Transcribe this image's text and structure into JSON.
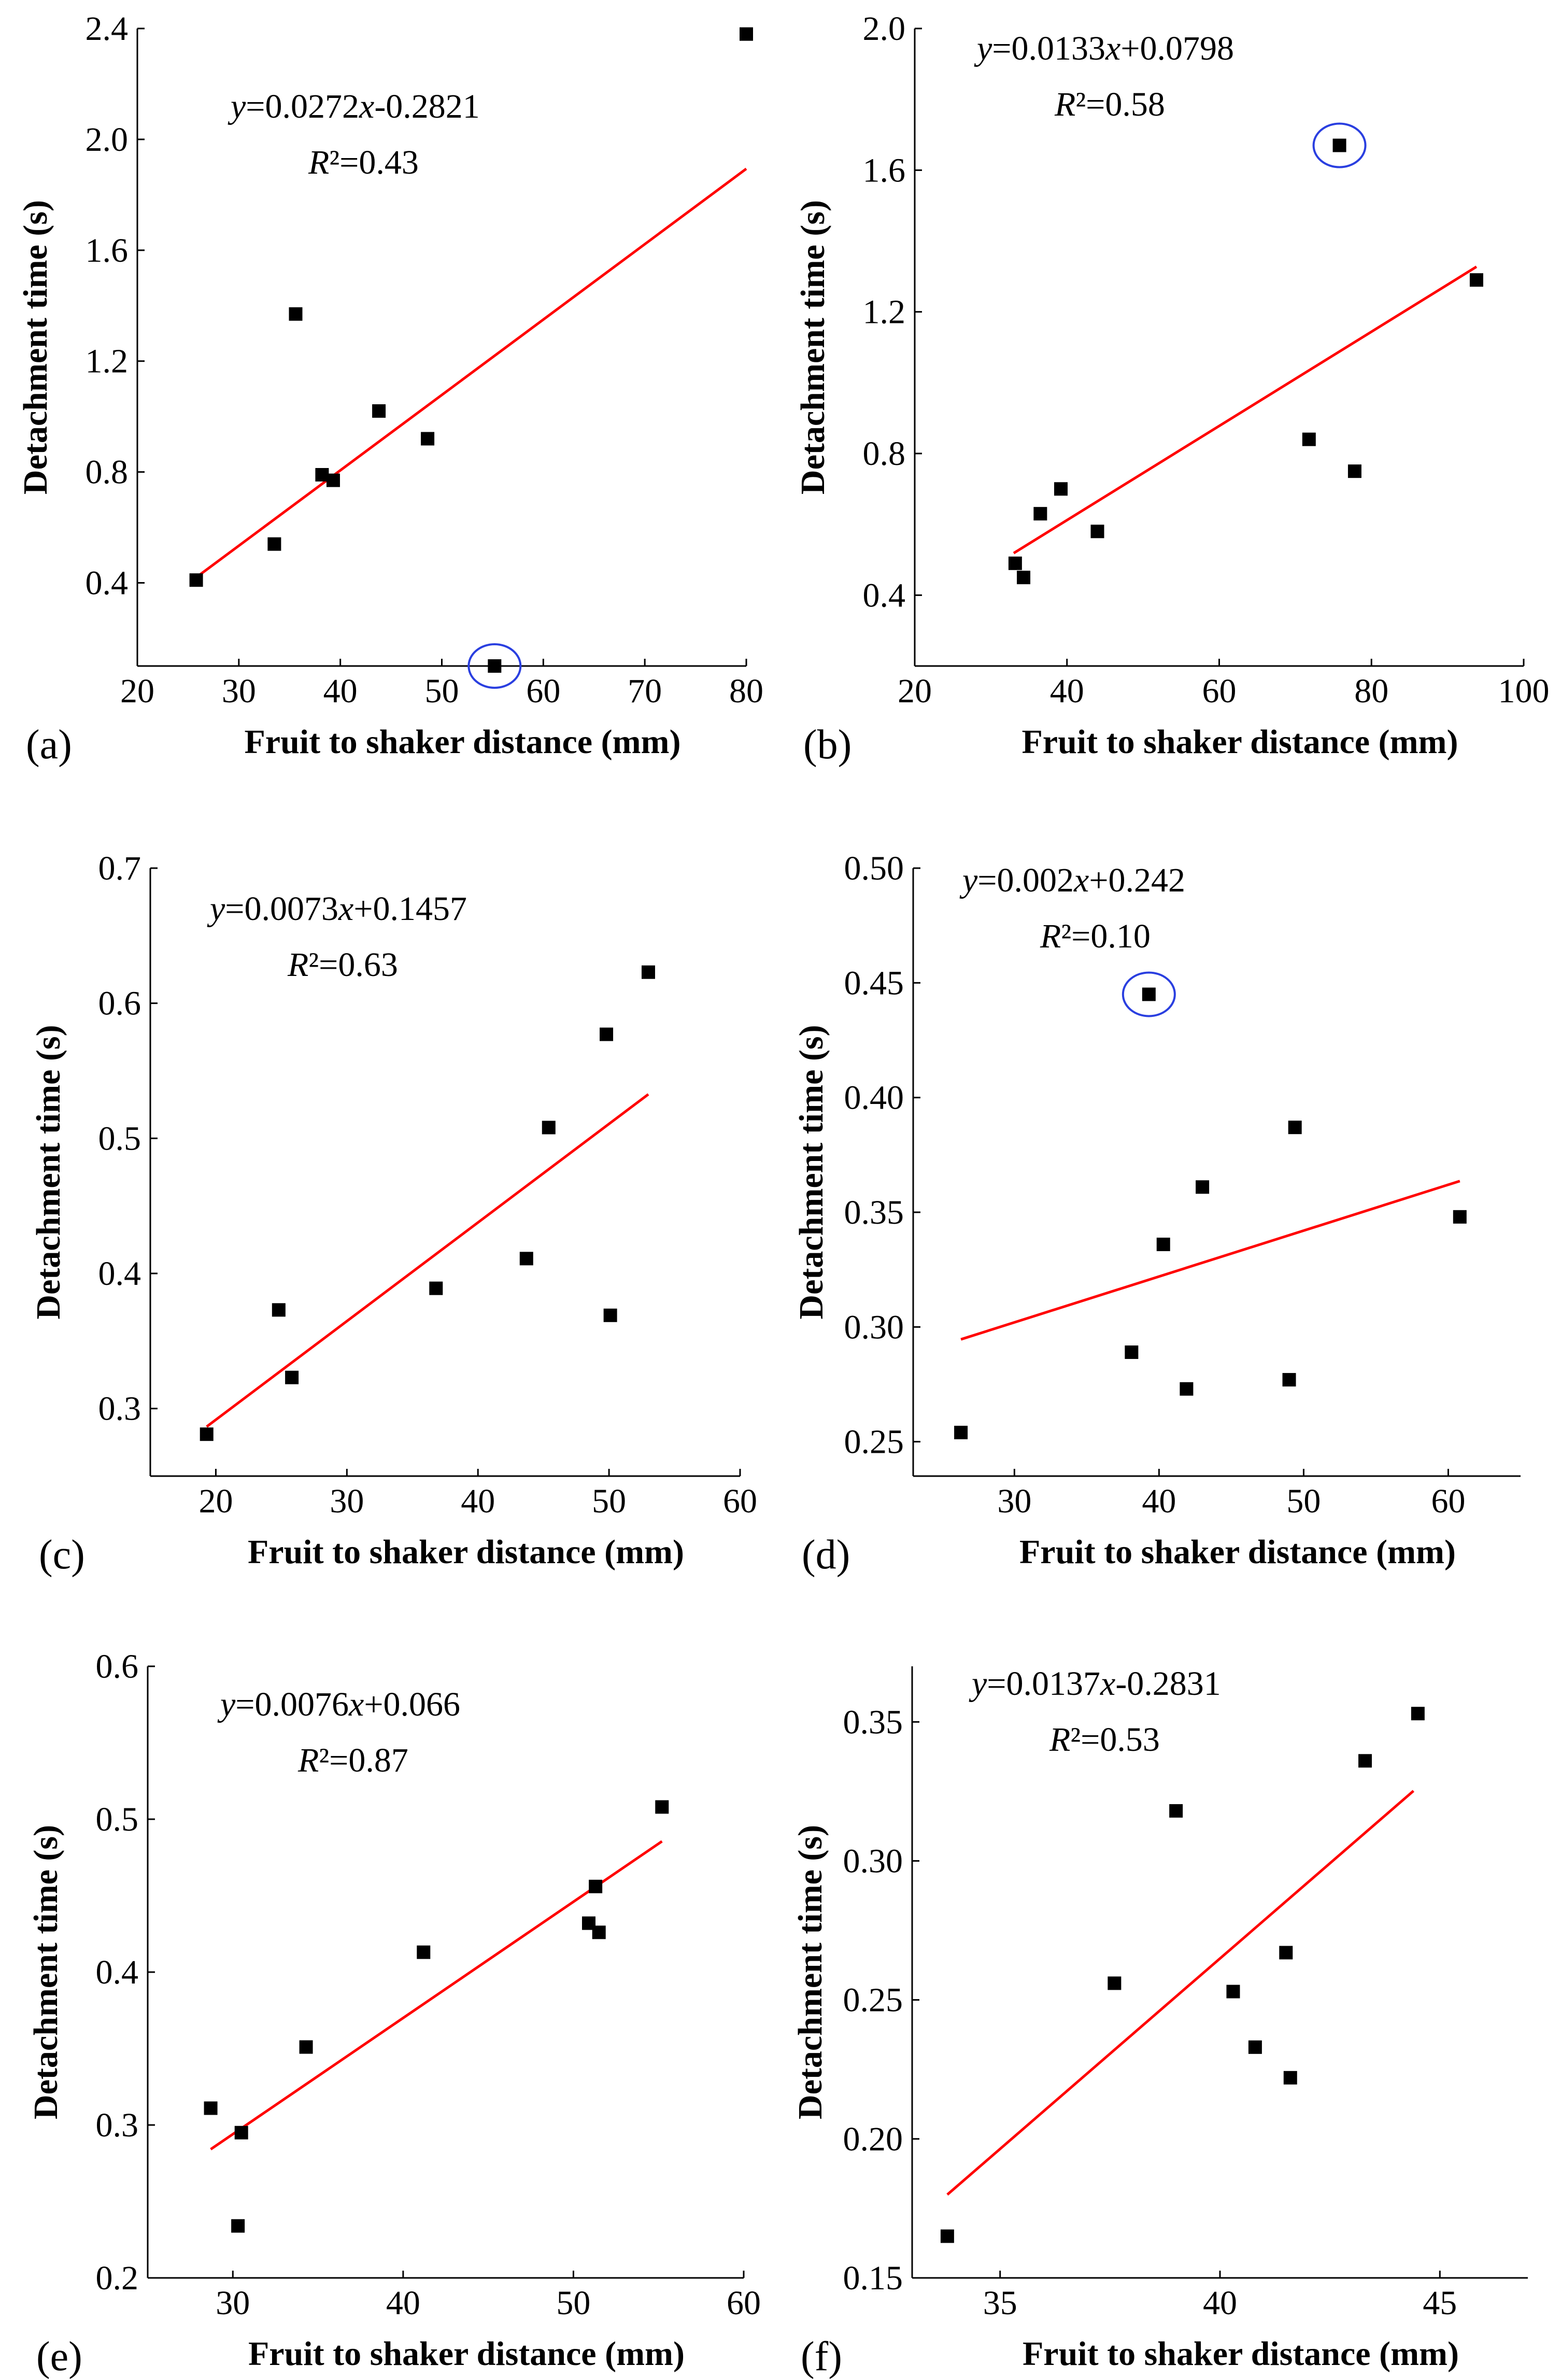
{
  "chart_data": [
    {
      "type": "scatter",
      "panel": "(a)",
      "xlabel": "Fruit to shaker distance (mm)",
      "ylabel": "Detachment time (s)",
      "xlim": [
        20,
        80
      ],
      "ylim": [
        0.1,
        2.4
      ],
      "xticks": [
        20,
        30,
        40,
        50,
        60,
        70,
        80
      ],
      "yticks": [
        0.4,
        0.8,
        1.2,
        1.6,
        2.0,
        2.4
      ],
      "ytick_decimals": 1,
      "points": [
        [
          25.8,
          0.41
        ],
        [
          33.5,
          0.54
        ],
        [
          35.6,
          1.37
        ],
        [
          38.2,
          0.79
        ],
        [
          39.3,
          0.77
        ],
        [
          43.8,
          1.02
        ],
        [
          48.6,
          0.92
        ],
        [
          55.2,
          0.1
        ],
        [
          80.0,
          2.38
        ]
      ],
      "outliers": [
        [
          55.2,
          0.1
        ]
      ],
      "regression": {
        "slope": 0.0272,
        "intercept": -0.2821,
        "x_range": [
          25.8,
          80.0
        ]
      },
      "equation": {
        "y_var": "y",
        "expr": "=0.0272",
        "x_var": "x",
        "const": "-0.2821",
        "r_var": "R",
        "r_rest": "²=0.43"
      }
    },
    {
      "type": "scatter",
      "panel": "(b)",
      "xlabel": "Fruit to shaker distance (mm)",
      "ylabel": "Detachment time (s)",
      "xlim": [
        20,
        100
      ],
      "ylim": [
        0.2,
        2.0
      ],
      "xticks": [
        20,
        40,
        60,
        80,
        100
      ],
      "yticks": [
        0.4,
        0.8,
        1.2,
        1.6,
        2.0
      ],
      "ytick_decimals": 1,
      "points": [
        [
          33.2,
          0.49
        ],
        [
          34.3,
          0.45
        ],
        [
          36.5,
          0.63
        ],
        [
          39.2,
          0.7
        ],
        [
          44.0,
          0.58
        ],
        [
          71.8,
          0.84
        ],
        [
          75.8,
          1.67
        ],
        [
          77.8,
          0.75
        ],
        [
          93.8,
          1.29
        ]
      ],
      "outliers": [
        [
          75.8,
          1.67
        ]
      ],
      "regression": {
        "slope": 0.0133,
        "intercept": 0.0798,
        "x_range": [
          33.0,
          93.8
        ]
      },
      "equation": {
        "y_var": "y",
        "expr": "=0.0133",
        "x_var": "x",
        "const": "+0.0798",
        "r_var": "R",
        "r_rest": "²=0.58"
      }
    },
    {
      "type": "scatter",
      "panel": "(c)",
      "xlabel": "Fruit to shaker distance (mm)",
      "ylabel": "Detachment time (s)",
      "xlim": [
        15,
        60
      ],
      "ylim": [
        0.25,
        0.7
      ],
      "xticks": [
        20,
        30,
        40,
        50,
        60
      ],
      "yticks": [
        0.3,
        0.4,
        0.5,
        0.6,
        0.7
      ],
      "ytick_decimals": 1,
      "points": [
        [
          19.3,
          0.281
        ],
        [
          24.8,
          0.373
        ],
        [
          25.8,
          0.323
        ],
        [
          36.8,
          0.389
        ],
        [
          43.7,
          0.411
        ],
        [
          45.4,
          0.508
        ],
        [
          49.8,
          0.577
        ],
        [
          50.1,
          0.369
        ],
        [
          53.0,
          0.623
        ]
      ],
      "outliers": [],
      "regression": {
        "slope": 0.0073,
        "intercept": 0.1457,
        "x_range": [
          19.3,
          53.0
        ]
      },
      "equation": {
        "y_var": "y",
        "expr": "=0.0073",
        "x_var": "x",
        "const": "+0.1457",
        "r_var": "R",
        "r_rest": "²=0.63"
      }
    },
    {
      "type": "scatter",
      "panel": "(d)",
      "xlabel": "Fruit to shaker distance (mm)",
      "ylabel": "Detachment time (s)",
      "xlim": [
        23,
        65
      ],
      "ylim": [
        0.235,
        0.5
      ],
      "xticks": [
        30,
        40,
        50,
        60
      ],
      "yticks": [
        0.25,
        0.3,
        0.35,
        0.4,
        0.45,
        0.5
      ],
      "ytick_decimals": 2,
      "points": [
        [
          26.3,
          0.254
        ],
        [
          38.1,
          0.289
        ],
        [
          39.3,
          0.445
        ],
        [
          40.3,
          0.336
        ],
        [
          41.9,
          0.273
        ],
        [
          43.0,
          0.361
        ],
        [
          49.0,
          0.277
        ],
        [
          49.4,
          0.387
        ],
        [
          60.8,
          0.348
        ]
      ],
      "outliers": [
        [
          39.3,
          0.445
        ]
      ],
      "regression": {
        "slope": 0.002,
        "intercept": 0.242,
        "x_range": [
          26.3,
          60.8
        ]
      },
      "equation": {
        "y_var": "y",
        "expr": "=0.002",
        "x_var": "x",
        "const": "+0.242",
        "r_var": "R",
        "r_rest": "²=0.10"
      }
    },
    {
      "type": "scatter",
      "panel": "(e)",
      "xlabel": "Fruit to shaker distance (mm)",
      "ylabel": "Detachment time (s)",
      "xlim": [
        25,
        60
      ],
      "ylim": [
        0.2,
        0.6
      ],
      "xticks": [
        30,
        40,
        50,
        60
      ],
      "yticks": [
        0.2,
        0.3,
        0.4,
        0.5,
        0.6
      ],
      "ytick_decimals": 1,
      "points": [
        [
          28.7,
          0.311
        ],
        [
          30.3,
          0.234
        ],
        [
          30.5,
          0.295
        ],
        [
          34.3,
          0.351
        ],
        [
          41.2,
          0.413
        ],
        [
          50.9,
          0.432
        ],
        [
          51.3,
          0.456
        ],
        [
          51.5,
          0.426
        ],
        [
          55.2,
          0.508
        ]
      ],
      "outliers": [],
      "regression": {
        "slope": 0.0076,
        "intercept": 0.066,
        "x_range": [
          28.7,
          55.2
        ]
      },
      "equation": {
        "y_var": "y",
        "expr": "=0.0076",
        "x_var": "x",
        "const": "+0.066",
        "r_var": "R",
        "r_rest": "²=0.87"
      }
    },
    {
      "type": "scatter",
      "panel": "(f)",
      "xlabel": "Fruit to shaker distance (mm)",
      "ylabel": "Detachment time (s)",
      "xlim": [
        33,
        47
      ],
      "ylim": [
        0.15,
        0.37
      ],
      "xticks": [
        35,
        40,
        45
      ],
      "yticks": [
        0.15,
        0.2,
        0.25,
        0.3,
        0.35
      ],
      "ytick_decimals": 2,
      "points": [
        [
          33.8,
          0.165
        ],
        [
          37.6,
          0.256
        ],
        [
          39.0,
          0.318
        ],
        [
          40.3,
          0.253
        ],
        [
          40.8,
          0.233
        ],
        [
          41.5,
          0.267
        ],
        [
          41.6,
          0.222
        ],
        [
          43.3,
          0.336
        ],
        [
          44.5,
          0.353
        ]
      ],
      "outliers": [],
      "regression": {
        "slope": 0.0137,
        "intercept": -0.2831,
        "x_range": [
          33.8,
          44.4
        ]
      },
      "equation": {
        "y_var": "y",
        "expr": "=0.0137",
        "x_var": "x",
        "const": "-0.2831",
        "r_var": "R",
        "r_rest": "²=0.53"
      }
    }
  ],
  "colors": {
    "regression": "#ff0000",
    "marker": "#000000",
    "outlier_circle": "#2a3fe0"
  }
}
